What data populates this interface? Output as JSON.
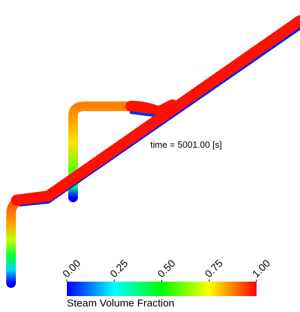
{
  "annotation": "time = 5001.00 [s]",
  "colorbar": {
    "title": "Steam Volume Fraction",
    "ticks": [
      {
        "value": 0,
        "label": "0.00"
      },
      {
        "value": 0.25,
        "label": "0.25"
      },
      {
        "value": 0.5,
        "label": "0.50"
      },
      {
        "value": 0.75,
        "label": "0.75"
      },
      {
        "value": 1,
        "label": "1.00"
      }
    ]
  }
}
